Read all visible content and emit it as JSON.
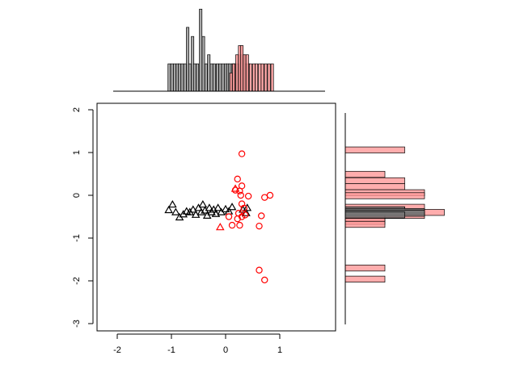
{
  "chart_data": [
    {
      "type": "scatter",
      "xlim": [
        -2,
        2
      ],
      "ylim": [
        -3,
        2
      ],
      "x_ticks": [
        -2,
        -1,
        0,
        1
      ],
      "y_ticks": [
        -3,
        -2,
        -1,
        0,
        1,
        2
      ],
      "x_tick_labels": [
        "-2",
        "-1",
        "0",
        "1"
      ],
      "y_tick_labels": [
        "-3",
        "-2",
        "-1",
        "0",
        "1",
        "2"
      ],
      "grid": false,
      "series": [
        {
          "marker": "triangle",
          "color": "#000000",
          "points": [
            [
              -1.05,
              -0.35
            ],
            [
              -0.98,
              -0.22
            ],
            [
              -0.92,
              -0.4
            ],
            [
              -0.85,
              -0.52
            ],
            [
              -0.78,
              -0.45
            ],
            [
              -0.72,
              -0.38
            ],
            [
              -0.66,
              -0.4
            ],
            [
              -0.6,
              -0.34
            ],
            [
              -0.55,
              -0.46
            ],
            [
              -0.5,
              -0.3
            ],
            [
              -0.45,
              -0.4
            ],
            [
              -0.42,
              -0.22
            ],
            [
              -0.38,
              -0.36
            ],
            [
              -0.34,
              -0.48
            ],
            [
              -0.3,
              -0.3
            ],
            [
              -0.26,
              -0.4
            ],
            [
              -0.22,
              -0.34
            ],
            [
              -0.18,
              -0.44
            ],
            [
              -0.14,
              -0.3
            ],
            [
              -0.08,
              -0.4
            ],
            [
              0.0,
              -0.33
            ],
            [
              0.06,
              -0.38
            ],
            [
              0.12,
              -0.28
            ],
            [
              0.32,
              -0.34
            ],
            [
              0.38,
              -0.42
            ],
            [
              0.4,
              -0.3
            ]
          ]
        },
        {
          "marker": "circle",
          "color": "#ff0000",
          "points": [
            [
              0.3,
              0.97
            ],
            [
              0.22,
              0.38
            ],
            [
              0.3,
              0.22
            ],
            [
              0.26,
              0.1
            ],
            [
              0.18,
              0.12
            ],
            [
              0.28,
              0.0
            ],
            [
              0.42,
              -0.02
            ],
            [
              0.3,
              -0.2
            ],
            [
              0.34,
              -0.3
            ],
            [
              0.24,
              -0.42
            ],
            [
              0.36,
              -0.46
            ],
            [
              0.3,
              -0.5
            ],
            [
              0.22,
              -0.55
            ],
            [
              0.06,
              -0.5
            ],
            [
              0.12,
              -0.7
            ],
            [
              0.26,
              -0.7
            ],
            [
              0.62,
              -0.72
            ],
            [
              0.66,
              -0.48
            ],
            [
              0.72,
              -0.05
            ],
            [
              0.82,
              0.0
            ],
            [
              0.62,
              -1.75
            ],
            [
              0.72,
              -1.98
            ]
          ]
        },
        {
          "marker": "triangle",
          "color": "#ff0000",
          "points": [
            [
              0.18,
              0.15
            ],
            [
              -0.1,
              -0.75
            ]
          ]
        }
      ]
    },
    {
      "type": "bar",
      "orientation": "vertical",
      "position": "top",
      "series": [
        {
          "fill": "#999999",
          "values": [
            [
              -1.04,
              3
            ],
            [
              -0.99,
              3
            ],
            [
              -0.94,
              3
            ],
            [
              -0.89,
              3
            ],
            [
              -0.85,
              3
            ],
            [
              -0.8,
              3
            ],
            [
              -0.75,
              3
            ],
            [
              -0.7,
              7
            ],
            [
              -0.66,
              3
            ],
            [
              -0.61,
              6
            ],
            [
              -0.57,
              3
            ],
            [
              -0.52,
              3
            ],
            [
              -0.46,
              9
            ],
            [
              -0.41,
              6
            ],
            [
              -0.36,
              3
            ],
            [
              -0.31,
              4
            ],
            [
              -0.26,
              3
            ],
            [
              -0.21,
              3
            ],
            [
              -0.15,
              3
            ],
            [
              -0.1,
              3
            ],
            [
              -0.05,
              3
            ],
            [
              0.0,
              3
            ],
            [
              0.04,
              3
            ],
            [
              0.08,
              3
            ],
            [
              0.13,
              3
            ],
            [
              0.18,
              3
            ],
            [
              0.22,
              3
            ],
            [
              0.28,
              4
            ],
            [
              0.33,
              4
            ],
            [
              0.38,
              3
            ],
            [
              0.42,
              3
            ]
          ]
        },
        {
          "fill": "#ff9999",
          "values": [
            [
              0.1,
              2
            ],
            [
              0.15,
              3
            ],
            [
              0.21,
              4
            ],
            [
              0.26,
              5
            ],
            [
              0.3,
              5
            ],
            [
              0.35,
              4
            ],
            [
              0.4,
              4
            ],
            [
              0.46,
              3
            ],
            [
              0.52,
              3
            ],
            [
              0.57,
              3
            ],
            [
              0.63,
              3
            ],
            [
              0.68,
              3
            ],
            [
              0.74,
              3
            ],
            [
              0.8,
              3
            ],
            [
              0.86,
              3
            ]
          ]
        }
      ]
    },
    {
      "type": "bar",
      "orientation": "horizontal",
      "position": "right",
      "series": [
        {
          "fill": "#ff9999",
          "values": [
            [
              1.06,
              3
            ],
            [
              0.49,
              2
            ],
            [
              0.34,
              3
            ],
            [
              0.2,
              3
            ],
            [
              0.06,
              4
            ],
            [
              -0.01,
              4
            ],
            [
              -0.28,
              4
            ],
            [
              -0.34,
              3
            ],
            [
              -0.4,
              5
            ],
            [
              -0.47,
              4
            ],
            [
              -0.53,
              2
            ],
            [
              -0.61,
              2
            ],
            [
              -0.68,
              2
            ],
            [
              -1.7,
              2
            ],
            [
              -1.96,
              2
            ]
          ]
        },
        {
          "fill": "#777777",
          "values": [
            [
              -0.34,
              3
            ],
            [
              -0.38,
              4
            ],
            [
              -0.42,
              4
            ],
            [
              -0.46,
              3
            ]
          ]
        }
      ]
    }
  ]
}
